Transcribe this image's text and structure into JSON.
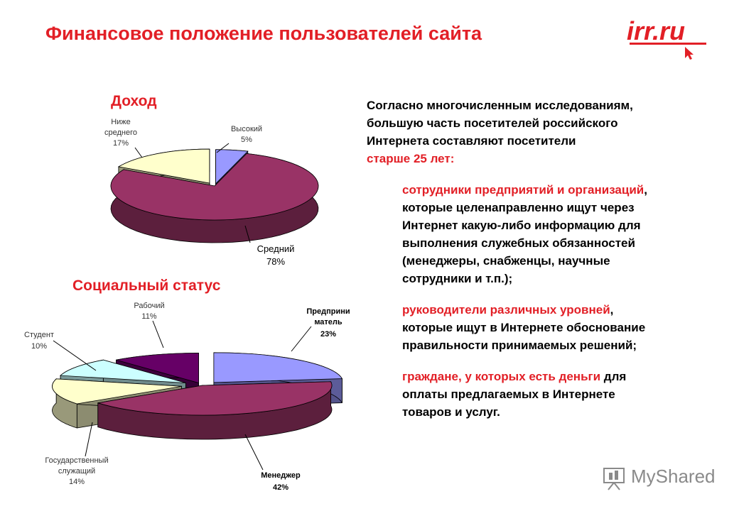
{
  "page": {
    "title": "Финансовое положение пользователей сайта"
  },
  "logo": {
    "text": "irr.ru",
    "color": "#e21f26"
  },
  "income_chart": {
    "title": "Доход",
    "labels": {
      "high_name": "Высокий",
      "high_pct": "5%",
      "below_line1": "Ниже",
      "below_line2": "среднего",
      "below_pct": "17%",
      "avg_name": "Средний",
      "avg_pct": "78%"
    }
  },
  "social_chart": {
    "title": "Социальный статус",
    "labels": {
      "worker_name": "Рабочий",
      "worker_pct": "11%",
      "entre_line1": "Предприни",
      "entre_line2": "матель",
      "entre_pct": "23%",
      "student_name": "Студент",
      "student_pct": "10%",
      "civil_line1": "Государственный",
      "civil_line2": "служащий",
      "civil_pct": "14%",
      "manager_name": "Менеджер",
      "manager_pct": "42%"
    }
  },
  "chart_data": [
    {
      "type": "pie",
      "title": "Доход",
      "categories": [
        "Высокий",
        "Средний",
        "Ниже среднего"
      ],
      "values": [
        5,
        78,
        17
      ],
      "colors": [
        "#9999ff",
        "#993366",
        "#ffffcc"
      ]
    },
    {
      "type": "pie",
      "title": "Социальный статус",
      "categories": [
        "Предприниматель",
        "Менеджер",
        "Государственный служащий",
        "Студент",
        "Рабочий"
      ],
      "values": [
        23,
        42,
        14,
        10,
        11
      ],
      "colors": [
        "#9999ff",
        "#993366",
        "#ffffcc",
        "#ccffff",
        "#660066"
      ]
    }
  ],
  "text": {
    "intro_line1": "Согласно многочисленным исследованиям,",
    "intro_line2": "большую часть посетителей российского",
    "intro_line3": "Интернета составляют посетители",
    "intro_line4": "старше 25 лет:",
    "item1_red": "сотрудники предприятий и организаций",
    "item1_comma": ",",
    "item1_line2": "которые целенаправленно ищут через",
    "item1_line3": "Интернет какую-либо информацию для",
    "item1_line4": "выполнения служебных обязанностей",
    "item1_line5": "(менеджеры, снабженцы, научные",
    "item1_line6": "сотрудники и т.п.);",
    "item2_red": "руководители различных уровней",
    "item2_comma": ",",
    "item2_line2": "которые ищут в Интернете обоснование",
    "item2_line3": "правильности принимаемых решений;",
    "item3_red": "граждане, у которых есть деньги",
    "item3_rest": " для",
    "item3_line2": "оплаты предлагаемых в Интернете",
    "item3_line3": "товаров и услуг."
  },
  "watermark": {
    "text": "MyShared"
  }
}
